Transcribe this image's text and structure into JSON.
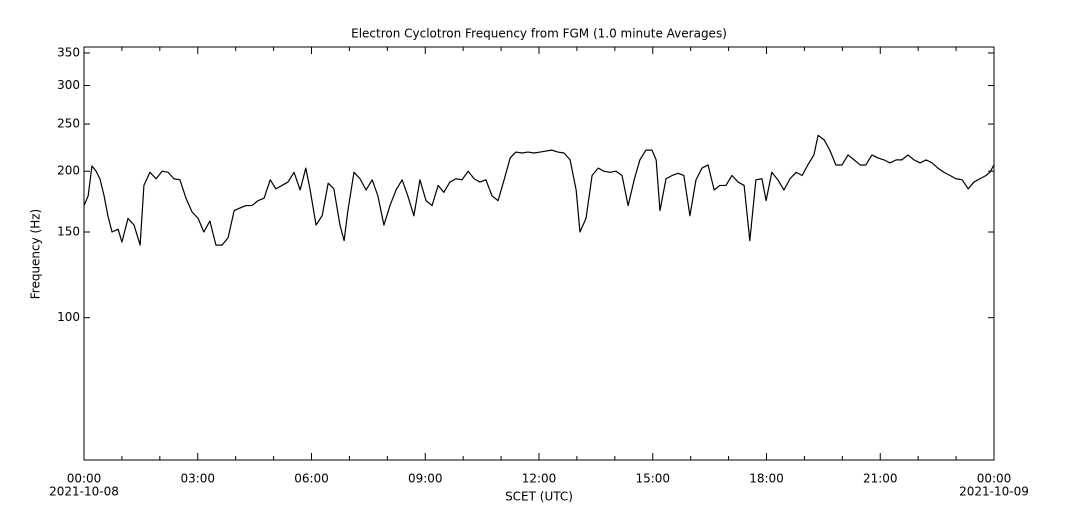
{
  "chart_data": {
    "type": "line",
    "title": "Electron Cyclotron Frequency from FGM (1.0 minute Averages)",
    "xlabel": "SCET (UTC)",
    "ylabel": "Frequency (Hz)",
    "log_y": true,
    "color": "#000000",
    "x": [
      0,
      0.11,
      0.21,
      0.32,
      0.42,
      0.53,
      0.63,
      0.74,
      0.9,
      1.0,
      1.16,
      1.32,
      1.48,
      1.58,
      1.74,
      1.9,
      2.06,
      2.22,
      2.37,
      2.53,
      2.69,
      2.85,
      3.01,
      3.16,
      3.32,
      3.48,
      3.64,
      3.8,
      3.96,
      4.11,
      4.27,
      4.43,
      4.59,
      4.75,
      4.91,
      5.06,
      5.22,
      5.38,
      5.54,
      5.7,
      5.85,
      5.96,
      6.12,
      6.28,
      6.44,
      6.59,
      6.75,
      6.86,
      6.96,
      7.12,
      7.28,
      7.44,
      7.6,
      7.75,
      7.91,
      8.07,
      8.23,
      8.39,
      8.54,
      8.7,
      8.86,
      9.02,
      9.18,
      9.34,
      9.49,
      9.65,
      9.81,
      9.97,
      10.13,
      10.29,
      10.44,
      10.6,
      10.76,
      10.92,
      11.08,
      11.24,
      11.39,
      11.55,
      11.71,
      11.87,
      12.03,
      12.18,
      12.34,
      12.5,
      12.66,
      12.82,
      12.98,
      13.08,
      13.24,
      13.4,
      13.56,
      13.71,
      13.87,
      14.03,
      14.19,
      14.35,
      14.51,
      14.66,
      14.82,
      14.98,
      15.09,
      15.19,
      15.35,
      15.51,
      15.67,
      15.82,
      15.98,
      16.14,
      16.3,
      16.46,
      16.62,
      16.77,
      16.93,
      17.09,
      17.25,
      17.41,
      17.56,
      17.72,
      17.88,
      17.99,
      18.14,
      18.3,
      18.46,
      18.62,
      18.78,
      18.94,
      19.09,
      19.25,
      19.36,
      19.52,
      19.67,
      19.83,
      19.99,
      20.15,
      20.31,
      20.47,
      20.62,
      20.78,
      20.94,
      21.1,
      21.26,
      21.42,
      21.57,
      21.73,
      21.89,
      22.05,
      22.21,
      22.37,
      22.52,
      22.68,
      22.84,
      23.0,
      23.16,
      23.32,
      23.47,
      23.63,
      23.79,
      23.89,
      24.0
    ],
    "values": [
      170,
      178,
      205,
      200,
      193,
      178,
      162,
      150,
      152,
      143,
      160,
      155,
      141,
      187,
      199,
      193,
      200,
      199,
      193,
      192,
      176,
      165,
      160,
      150,
      158,
      141,
      141,
      146,
      166,
      168,
      170,
      170,
      174,
      176,
      192,
      184,
      187,
      190,
      199,
      183,
      203,
      184,
      155,
      162,
      189,
      184,
      155,
      144,
      166,
      199,
      193,
      183,
      192,
      178,
      155,
      170,
      183,
      192,
      178,
      162,
      192,
      174,
      170,
      187,
      181,
      190,
      193,
      192,
      200,
      193,
      190,
      192,
      178,
      174,
      192,
      213,
      219,
      218,
      219,
      218,
      219,
      220,
      221,
      219,
      218,
      211,
      183,
      150,
      160,
      196,
      203,
      200,
      199,
      200,
      196,
      170,
      192,
      211,
      221,
      221,
      211,
      166,
      193,
      196,
      198,
      196,
      162,
      192,
      203,
      206,
      183,
      187,
      187,
      196,
      190,
      187,
      144,
      192,
      193,
      174,
      199,
      192,
      183,
      193,
      199,
      196,
      206,
      216,
      237,
      232,
      221,
      206,
      206,
      216,
      211,
      206,
      206,
      216,
      213,
      211,
      208,
      211,
      211,
      216,
      211,
      208,
      211,
      208,
      203,
      199,
      196,
      193,
      192,
      184,
      190,
      193,
      196,
      199,
      206
    ],
    "xlim": [
      0,
      24
    ],
    "xticks": [
      {
        "value": 0,
        "label": "00:00"
      },
      {
        "value": 3,
        "label": "03:00"
      },
      {
        "value": 6,
        "label": "06:00"
      },
      {
        "value": 9,
        "label": "09:00"
      },
      {
        "value": 12,
        "label": "12:00"
      },
      {
        "value": 15,
        "label": "15:00"
      },
      {
        "value": 18,
        "label": "18:00"
      },
      {
        "value": 21,
        "label": "21:00"
      },
      {
        "value": 24,
        "label": "00:00"
      }
    ],
    "xtick_dates": [
      {
        "value": 0,
        "label": "2021-10-08"
      },
      {
        "value": 24,
        "label": "2021-10-09"
      }
    ],
    "xminor_ticks": [
      1,
      2,
      4,
      5,
      7,
      8,
      10,
      11,
      13,
      14,
      16,
      17,
      19,
      20,
      22,
      23
    ],
    "ylim": [
      51,
      360
    ],
    "yticks": [
      100,
      150,
      200,
      250,
      300,
      350
    ]
  }
}
